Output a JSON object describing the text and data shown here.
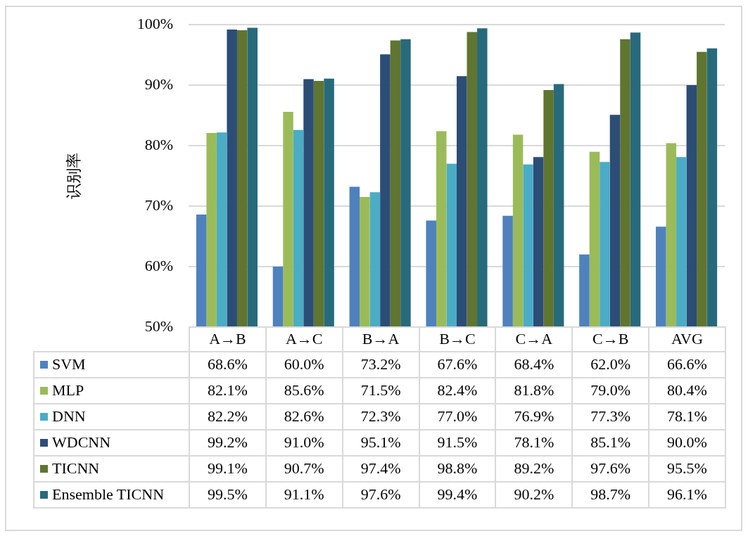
{
  "chart_data": {
    "type": "bar",
    "ylabel": "识别率",
    "categories": [
      "A→B",
      "A→C",
      "B→A",
      "B→C",
      "C→A",
      "C→B",
      "AVG"
    ],
    "series": [
      {
        "name": "SVM",
        "color": "#4f81bd",
        "values": [
          68.6,
          60.0,
          73.2,
          67.6,
          68.4,
          62.0,
          66.6
        ],
        "value_labels": [
          "68.6%",
          "60.0%",
          "73.2%",
          "67.6%",
          "68.4%",
          "62.0%",
          "66.6%"
        ]
      },
      {
        "name": "MLP",
        "color": "#9bbb59",
        "values": [
          82.1,
          85.6,
          71.5,
          82.4,
          81.8,
          79.0,
          80.4
        ],
        "value_labels": [
          "82.1%",
          "85.6%",
          "71.5%",
          "82.4%",
          "81.8%",
          "79.0%",
          "80.4%"
        ]
      },
      {
        "name": "DNN",
        "color": "#4bacc6",
        "values": [
          82.2,
          82.6,
          72.3,
          77.0,
          76.9,
          77.3,
          78.1
        ],
        "value_labels": [
          "82.2%",
          "82.6%",
          "72.3%",
          "77.0%",
          "76.9%",
          "77.3%",
          "78.1%"
        ]
      },
      {
        "name": "WDCNN",
        "color": "#2c4d75",
        "values": [
          99.2,
          91.0,
          95.1,
          91.5,
          78.1,
          85.1,
          90.0
        ],
        "value_labels": [
          "99.2%",
          "91.0%",
          "95.1%",
          "91.5%",
          "78.1%",
          "85.1%",
          "90.0%"
        ]
      },
      {
        "name": "TICNN",
        "color": "#5f7530",
        "values": [
          99.1,
          90.7,
          97.4,
          98.8,
          89.2,
          97.6,
          95.5
        ],
        "value_labels": [
          "99.1%",
          "90.7%",
          "97.4%",
          "98.8%",
          "89.2%",
          "97.6%",
          "95.5%"
        ]
      },
      {
        "name": "Ensemble TICNN",
        "color": "#276a7c",
        "values": [
          99.5,
          91.1,
          97.6,
          99.4,
          90.2,
          98.7,
          96.1
        ],
        "value_labels": [
          "99.5%",
          "91.1%",
          "97.6%",
          "99.4%",
          "90.2%",
          "98.7%",
          "96.1%"
        ]
      }
    ],
    "ylim": [
      50,
      100
    ],
    "yticks": [
      {
        "value": 50,
        "label": "50%"
      },
      {
        "value": 60,
        "label": "60%"
      },
      {
        "value": 70,
        "label": "70%"
      },
      {
        "value": 80,
        "label": "80%"
      },
      {
        "value": 90,
        "label": "90%"
      },
      {
        "value": 100,
        "label": "100%"
      }
    ],
    "grid": "y",
    "legend": "bottom"
  }
}
